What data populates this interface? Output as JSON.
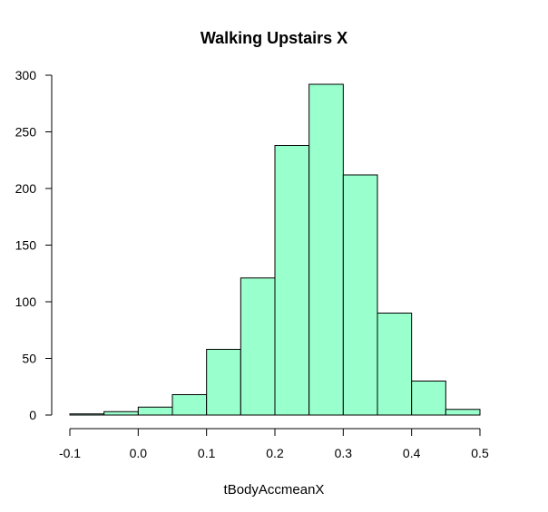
{
  "chart_data": {
    "type": "bar",
    "title": "Walking Upstairs X",
    "xlabel": "tBodyAccmeanX",
    "ylabel": "",
    "bar_color": "#99ffcc",
    "x_ticks": [
      "-0.1",
      "0.0",
      "0.1",
      "0.2",
      "0.3",
      "0.4",
      "0.5"
    ],
    "y_ticks": [
      "0",
      "50",
      "100",
      "150",
      "200",
      "250",
      "300"
    ],
    "xlim": [
      -0.1,
      0.5
    ],
    "ylim": [
      0,
      300
    ],
    "bins": [
      {
        "start": -0.1,
        "end": -0.05,
        "count": 1
      },
      {
        "start": -0.05,
        "end": 0.0,
        "count": 3
      },
      {
        "start": 0.0,
        "end": 0.05,
        "count": 7
      },
      {
        "start": 0.05,
        "end": 0.1,
        "count": 18
      },
      {
        "start": 0.1,
        "end": 0.15,
        "count": 58
      },
      {
        "start": 0.15,
        "end": 0.2,
        "count": 121
      },
      {
        "start": 0.2,
        "end": 0.25,
        "count": 238
      },
      {
        "start": 0.25,
        "end": 0.3,
        "count": 292
      },
      {
        "start": 0.3,
        "end": 0.35,
        "count": 212
      },
      {
        "start": 0.35,
        "end": 0.4,
        "count": 90
      },
      {
        "start": 0.4,
        "end": 0.45,
        "count": 30
      },
      {
        "start": 0.45,
        "end": 0.5,
        "count": 5
      }
    ]
  }
}
